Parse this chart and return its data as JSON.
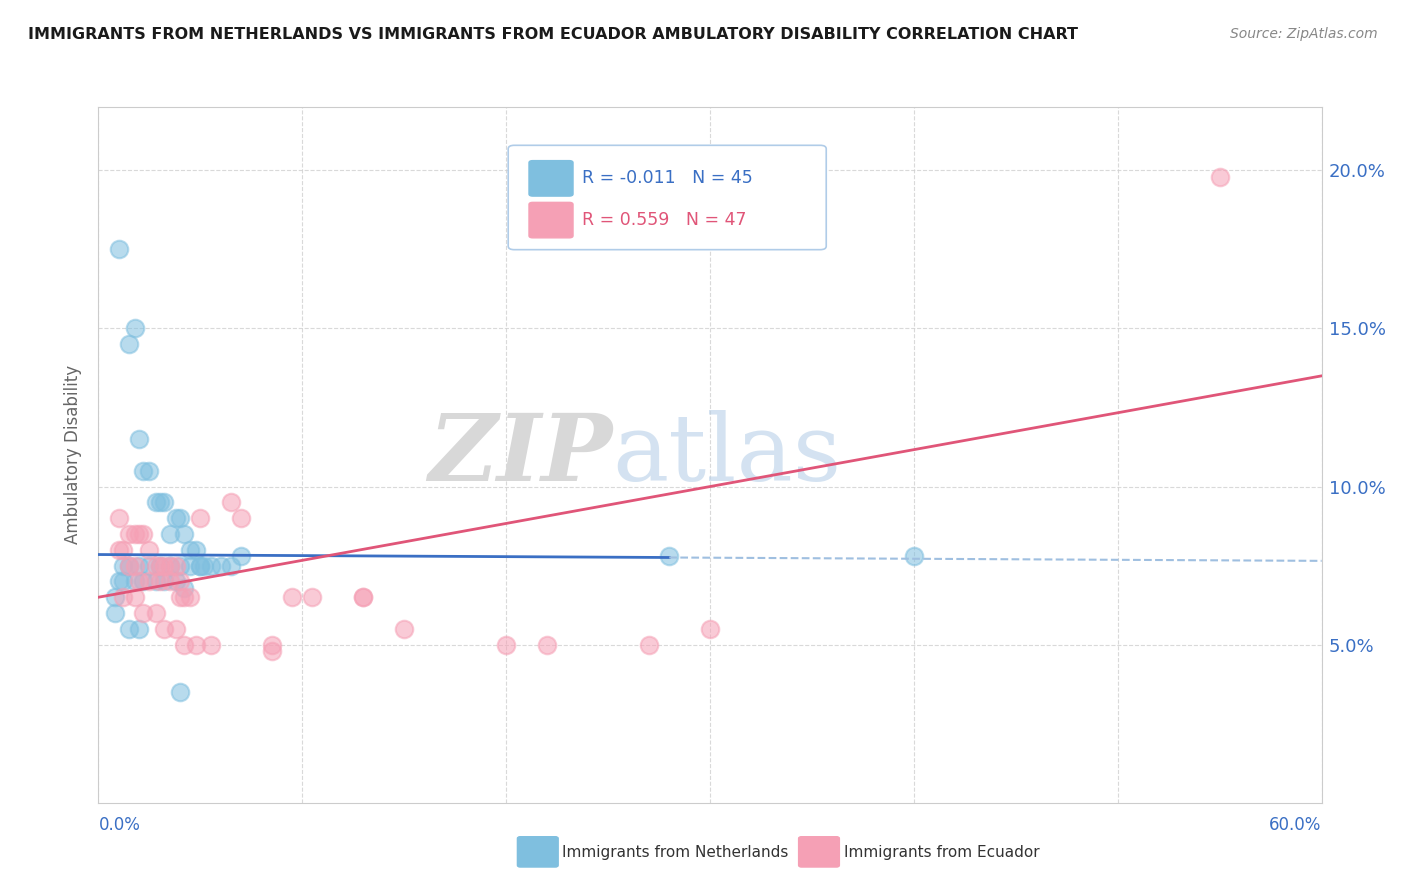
{
  "title": "IMMIGRANTS FROM NETHERLANDS VS IMMIGRANTS FROM ECUADOR AMBULATORY DISABILITY CORRELATION CHART",
  "source": "Source: ZipAtlas.com",
  "ylabel": "Ambulatory Disability",
  "legend_blue_label": "Immigrants from Netherlands",
  "legend_pink_label": "Immigrants from Ecuador",
  "legend_blue_r": "R = -0.011",
  "legend_blue_n": "N = 45",
  "legend_pink_r": "R = 0.559",
  "legend_pink_n": "N = 47",
  "right_yticks": [
    5.0,
    10.0,
    15.0,
    20.0
  ],
  "watermark_zip": "ZIP",
  "watermark_atlas": "atlas",
  "blue_scatter_color": "#7fbfdf",
  "pink_scatter_color": "#f5a0b5",
  "blue_line_color": "#3a6fc4",
  "pink_line_color": "#e05578",
  "blue_line_dashed_color": "#9fbfe0",
  "xlim": [
    0,
    60
  ],
  "ylim": [
    0,
    22
  ],
  "nl_line_x0": 0,
  "nl_line_y0": 7.85,
  "nl_line_x1": 60,
  "nl_line_y1": 7.65,
  "nl_solid_end": 28,
  "ec_line_x0": 0,
  "ec_line_y0": 6.5,
  "ec_line_x1": 60,
  "ec_line_y1": 13.5,
  "netherlands_x": [
    1.0,
    1.5,
    1.8,
    2.0,
    2.2,
    2.5,
    2.8,
    3.0,
    3.2,
    3.5,
    3.8,
    4.0,
    4.2,
    4.5,
    4.8,
    5.0,
    5.2,
    5.5,
    6.0,
    6.5,
    7.0,
    1.2,
    1.5,
    2.0,
    2.5,
    3.0,
    3.5,
    4.0,
    4.5,
    5.0,
    1.0,
    1.2,
    1.8,
    2.2,
    2.8,
    3.2,
    3.8,
    4.2,
    0.8,
    0.8,
    1.5,
    2.0,
    4.0,
    28.0,
    40.0
  ],
  "netherlands_y": [
    17.5,
    14.5,
    15.0,
    11.5,
    10.5,
    10.5,
    9.5,
    9.5,
    9.5,
    8.5,
    9.0,
    9.0,
    8.5,
    8.0,
    8.0,
    7.5,
    7.5,
    7.5,
    7.5,
    7.5,
    7.8,
    7.5,
    7.5,
    7.5,
    7.5,
    7.5,
    7.5,
    7.5,
    7.5,
    7.5,
    7.0,
    7.0,
    7.0,
    7.0,
    7.0,
    7.0,
    7.0,
    6.8,
    6.5,
    6.0,
    5.5,
    5.5,
    3.5,
    7.8,
    7.8
  ],
  "ecuador_x": [
    1.0,
    1.5,
    1.8,
    2.0,
    2.2,
    2.5,
    2.8,
    3.0,
    3.2,
    3.5,
    3.8,
    4.0,
    4.2,
    4.5,
    1.0,
    1.2,
    1.5,
    1.8,
    2.0,
    2.5,
    3.0,
    3.5,
    4.0,
    5.0,
    6.5,
    7.0,
    9.5,
    10.5,
    13.0,
    55.0,
    1.2,
    1.8,
    2.2,
    2.8,
    3.2,
    3.8,
    4.2,
    4.8,
    5.5,
    13.0,
    15.0,
    27.0,
    20.0,
    30.0,
    8.5,
    8.5,
    22.0
  ],
  "ecuador_y": [
    9.0,
    8.5,
    8.5,
    8.5,
    8.5,
    8.0,
    7.5,
    7.5,
    7.5,
    7.5,
    7.5,
    7.0,
    6.5,
    6.5,
    8.0,
    8.0,
    7.5,
    7.5,
    7.0,
    7.0,
    7.0,
    7.0,
    6.5,
    9.0,
    9.5,
    9.0,
    6.5,
    6.5,
    6.5,
    19.8,
    6.5,
    6.5,
    6.0,
    6.0,
    5.5,
    5.5,
    5.0,
    5.0,
    5.0,
    6.5,
    5.5,
    5.0,
    5.0,
    5.5,
    5.0,
    4.8,
    5.0
  ]
}
